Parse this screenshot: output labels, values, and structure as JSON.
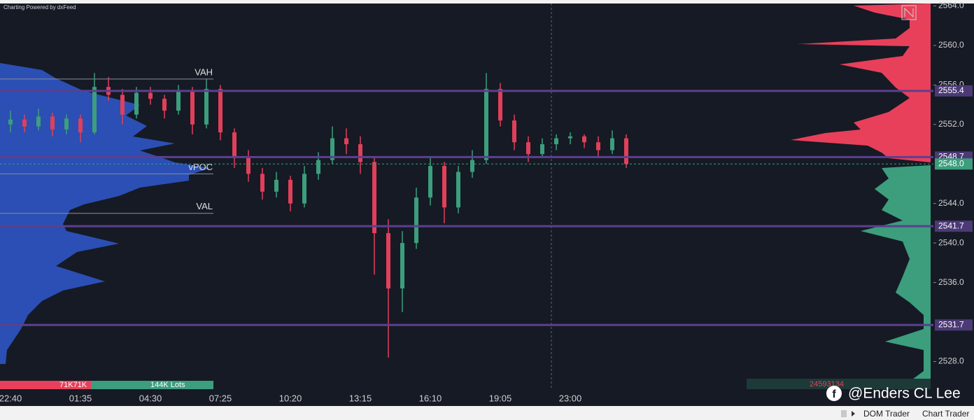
{
  "header": "Charting Powered by dxFeed",
  "chart_data": {
    "type": "candlestick",
    "categories": [
      "22:40",
      null,
      null,
      null,
      null,
      "01:35",
      null,
      null,
      null,
      null,
      "04:30",
      null,
      null,
      null,
      null,
      "07:25",
      null,
      null,
      null,
      null,
      "10:20",
      null,
      null,
      null,
      null,
      "13:15",
      null,
      null,
      null,
      null,
      "16:10",
      null,
      null,
      null,
      null,
      "19:05",
      null,
      null,
      null,
      null,
      "23:00",
      null,
      null,
      null,
      null
    ],
    "open": [
      2552.0,
      2552.5,
      2551.8,
      2552.8,
      2551.5,
      2552.6,
      2551.2,
      2555.8,
      2555.0,
      2553.0,
      2555.2,
      2554.6,
      2553.4,
      2555.4,
      2552.0,
      2555.6,
      2551.2,
      2548.6,
      2547.0,
      2545.2,
      2546.4,
      2544.0,
      2547.0,
      2548.4,
      2550.6,
      2550.0,
      2548.2,
      2541.0,
      2535.4,
      2540.0,
      2544.6,
      2547.8,
      2543.6,
      2547.2,
      2548.4,
      2555.6,
      2552.4,
      2550.2,
      2549.0,
      2550.0,
      2550.6,
      2550.8,
      2550.2,
      2549.4,
      2550.6
    ],
    "high": [
      2553.4,
      2553.0,
      2553.6,
      2553.2,
      2553.0,
      2553.0,
      2557.2,
      2556.8,
      2555.6,
      2555.8,
      2555.8,
      2555.0,
      2556.0,
      2555.8,
      2556.6,
      2556.0,
      2551.6,
      2549.4,
      2547.6,
      2547.2,
      2546.8,
      2547.8,
      2549.2,
      2551.8,
      2551.6,
      2550.8,
      2548.8,
      2542.4,
      2541.2,
      2545.6,
      2548.6,
      2548.2,
      2547.8,
      2549.4,
      2557.2,
      2556.2,
      2553.0,
      2550.8,
      2550.6,
      2551.0,
      2551.2,
      2551.0,
      2550.8,
      2551.4,
      2551.0
    ],
    "low": [
      2551.2,
      2551.2,
      2551.4,
      2550.8,
      2551.0,
      2550.2,
      2551.0,
      2554.4,
      2552.0,
      2552.6,
      2554.0,
      2552.6,
      2553.0,
      2551.0,
      2551.6,
      2550.4,
      2547.6,
      2546.2,
      2544.4,
      2544.6,
      2543.2,
      2543.6,
      2546.4,
      2548.0,
      2549.0,
      2547.0,
      2536.8,
      2528.4,
      2533.0,
      2539.4,
      2543.8,
      2542.0,
      2543.0,
      2546.6,
      2548.0,
      2551.8,
      2549.4,
      2548.2,
      2548.6,
      2549.4,
      2550.0,
      2549.6,
      2548.6,
      2549.0,
      2547.6
    ],
    "close": [
      2552.5,
      2551.8,
      2552.8,
      2551.5,
      2552.6,
      2551.2,
      2555.8,
      2555.0,
      2553.0,
      2555.2,
      2554.6,
      2553.4,
      2555.4,
      2552.0,
      2555.6,
      2551.2,
      2548.6,
      2547.0,
      2545.2,
      2546.4,
      2544.0,
      2547.0,
      2548.4,
      2550.6,
      2550.0,
      2548.2,
      2541.0,
      2535.4,
      2540.0,
      2544.6,
      2547.8,
      2543.6,
      2547.2,
      2548.4,
      2555.6,
      2552.4,
      2550.2,
      2549.0,
      2550.0,
      2550.6,
      2550.8,
      2550.2,
      2549.4,
      2550.6,
      2548.0
    ],
    "up_color": "#3c9e7c",
    "down_color": "#e0405a",
    "ylim": [
      2525.2,
      2564.6
    ],
    "yticks": [
      {
        "value": 2564,
        "label": "2564.0"
      },
      {
        "value": 2560,
        "label": "2560.0"
      },
      {
        "value": 2556,
        "label": "2556.0"
      },
      {
        "value": 2552,
        "label": "2552.0"
      },
      {
        "value": 2544,
        "label": "2544.0"
      },
      {
        "value": 2540,
        "label": "2540.0"
      },
      {
        "value": 2536,
        "label": "2536.0"
      },
      {
        "value": 2528,
        "label": "2528.0"
      }
    ],
    "levels": [
      {
        "value": 2555.4,
        "label": "2555.4"
      },
      {
        "value": 2548.7,
        "label": "2548.7"
      },
      {
        "value": 2541.7,
        "label": "2541.7"
      },
      {
        "value": 2531.7,
        "label": "2531.7"
      }
    ],
    "level_color": "#5d3f8f",
    "last_price": {
      "value": 2548.0,
      "label": "2548.0"
    },
    "annotations": [
      {
        "text": "VAH",
        "value": 2556.6
      },
      {
        "text": "vPOC",
        "value": 2547.0
      },
      {
        "text": "VAL",
        "value": 2543.0
      }
    ]
  },
  "volume_bar": {
    "sell": "71K71K",
    "total": "144K Lots"
  },
  "counter": "24593134",
  "watermark": "@Enders CL Lee",
  "footer": {
    "dom": "DOM Trader",
    "chart_trader": "Chart Trader"
  }
}
